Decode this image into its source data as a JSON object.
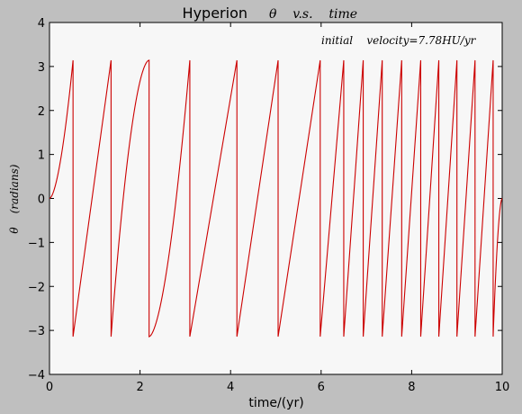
{
  "chart_data": {
    "type": "line",
    "title": "Hyperion",
    "title_math": "θ    v.s.    time",
    "xlabel": "time/(yr)",
    "ylabel_theta": "θ",
    "ylabel_units": "(radians)",
    "annotation": "initial    velocity=7.78HU/yr",
    "xlim": [
      0,
      10
    ],
    "ylim": [
      -4,
      4
    ],
    "x_ticks": [
      0,
      2,
      4,
      6,
      8,
      10
    ],
    "y_ticks": [
      -4,
      -3,
      -2,
      -1,
      0,
      1,
      2,
      3,
      4
    ],
    "grid": false,
    "series": [
      {
        "color": "#cc0000",
        "wrap_times": [
          0.52,
          1.36,
          2.2,
          3.1,
          4.14,
          5.05,
          5.98,
          6.5,
          6.93,
          7.35,
          7.78,
          8.2,
          8.6,
          9.0,
          9.4,
          9.8
        ],
        "start": [
          0,
          0
        ],
        "end": [
          10,
          0
        ]
      }
    ],
    "colors": {
      "line": "#cc0000",
      "plot_background": "#f7f7f7",
      "figure_background": "#bfbfbf"
    }
  }
}
